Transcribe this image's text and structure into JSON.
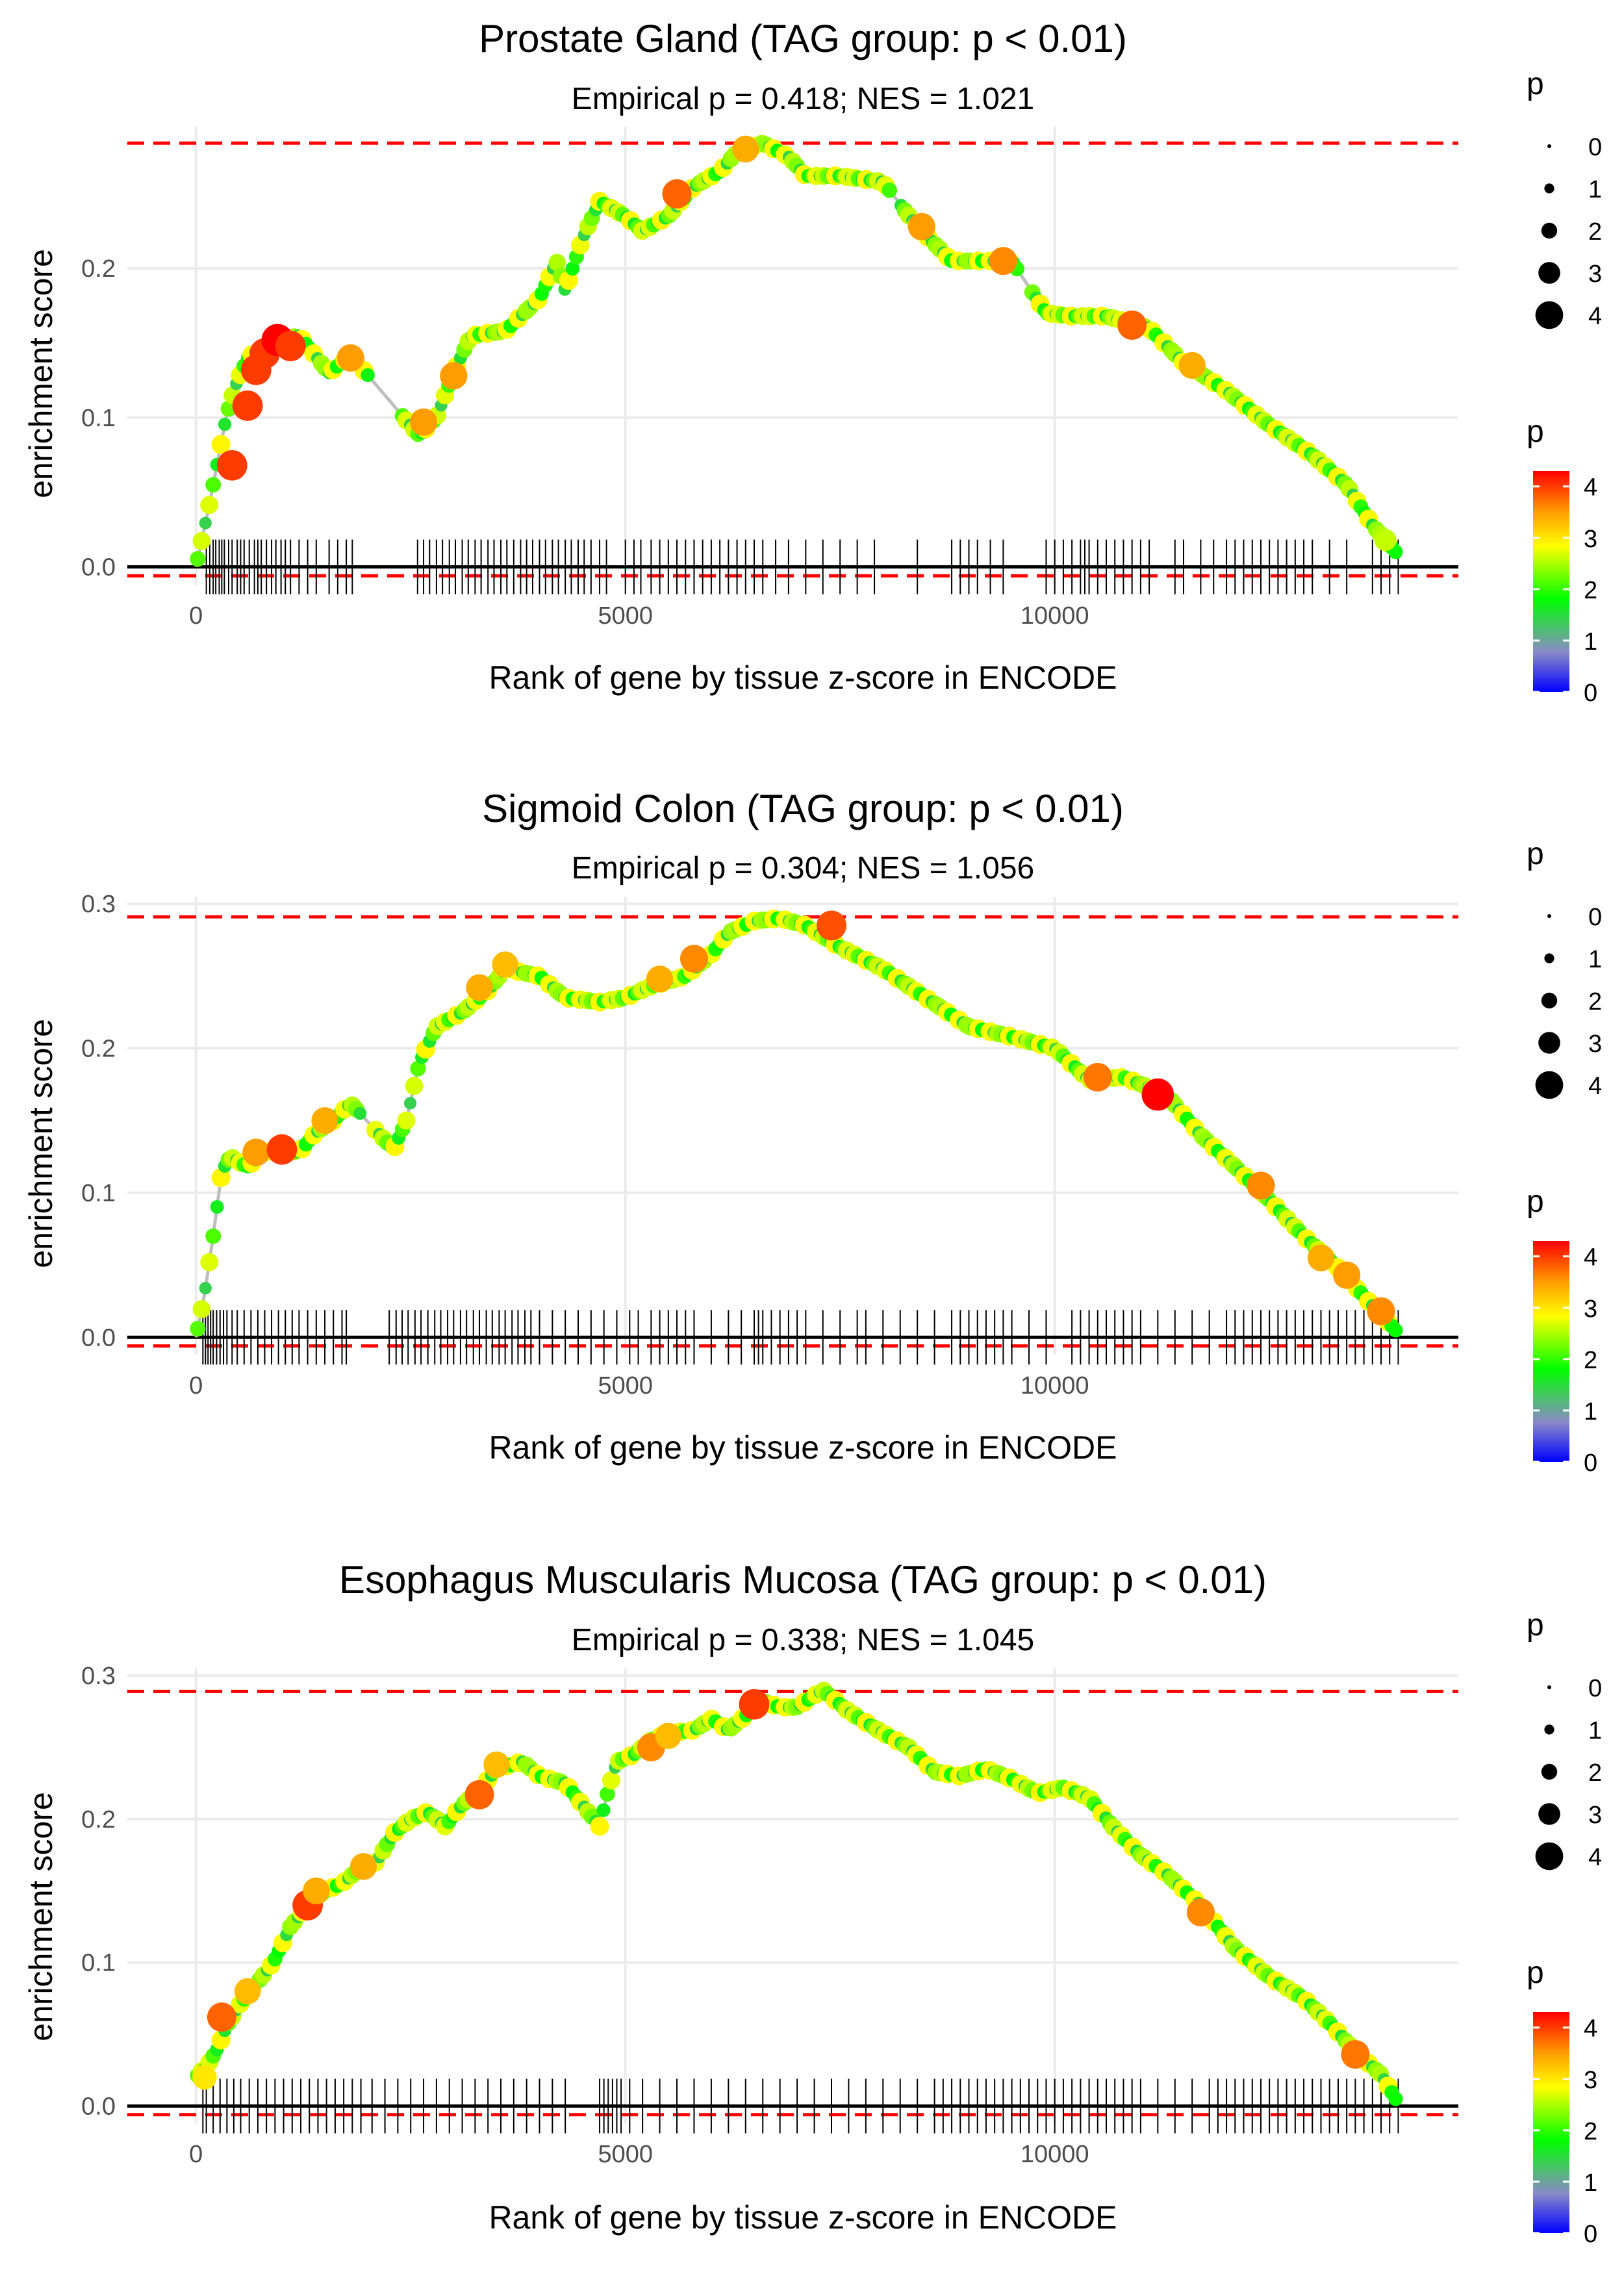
{
  "figure_title": "",
  "colors": {
    "threshold_line": "#ff0000",
    "running_line": "#bebebe",
    "axis_line": "#000000",
    "grid": "#ebebeb",
    "gradient": [
      "#0000ff",
      "#8a8ac8",
      "#00ff00",
      "#ffff00",
      "#ff9900",
      "#ff0000"
    ]
  },
  "chart_data": [
    {
      "type": "line",
      "title": "Prostate Gland (TAG group: p < 0.01)",
      "subtitle": "Empirical p = 0.418; NES = 1.021",
      "xlabel": "Rank of gene by tissue z-score in ENCODE",
      "ylabel": "enrichment score",
      "xlim": [
        -800,
        14700
      ],
      "ylim": [
        -0.012,
        0.295
      ],
      "xticks": [
        0,
        5000,
        10000
      ],
      "xtick_labels": [
        "0",
        "5000",
        "10000"
      ],
      "yticks": [
        0.0,
        0.1,
        0.2
      ],
      "ytick_labels": [
        "0.0",
        "0.1",
        "0.2"
      ],
      "threshold_max": 0.284,
      "threshold_min": -0.006,
      "curve": [
        [
          0,
          0
        ],
        [
          150,
          0.04
        ],
        [
          250,
          0.07
        ],
        [
          350,
          0.1
        ],
        [
          450,
          0.12
        ],
        [
          600,
          0.14
        ],
        [
          800,
          0.148
        ],
        [
          1000,
          0.152
        ],
        [
          1200,
          0.155
        ],
        [
          1550,
          0.13
        ],
        [
          1800,
          0.142
        ],
        [
          2600,
          0.088
        ],
        [
          2800,
          0.1
        ],
        [
          3000,
          0.13
        ],
        [
          3200,
          0.155
        ],
        [
          3600,
          0.158
        ],
        [
          4000,
          0.18
        ],
        [
          4200,
          0.205
        ],
        [
          4300,
          0.185
        ],
        [
          4500,
          0.22
        ],
        [
          4700,
          0.245
        ],
        [
          5000,
          0.235
        ],
        [
          5200,
          0.225
        ],
        [
          5500,
          0.235
        ],
        [
          5800,
          0.255
        ],
        [
          6100,
          0.265
        ],
        [
          6300,
          0.278
        ],
        [
          6600,
          0.284
        ],
        [
          6900,
          0.275
        ],
        [
          7100,
          0.262
        ],
        [
          7500,
          0.262
        ],
        [
          8000,
          0.258
        ],
        [
          8400,
          0.228
        ],
        [
          8800,
          0.205
        ],
        [
          9200,
          0.205
        ],
        [
          9500,
          0.205
        ],
        [
          9900,
          0.17
        ],
        [
          10200,
          0.168
        ],
        [
          10600,
          0.168
        ],
        [
          11100,
          0.16
        ],
        [
          11500,
          0.137
        ],
        [
          12000,
          0.118
        ],
        [
          12500,
          0.095
        ],
        [
          13000,
          0.075
        ],
        [
          13400,
          0.055
        ],
        [
          13700,
          0.028
        ],
        [
          14000,
          0.008
        ]
      ],
      "big_dots": [
        [
          420,
          0.068,
          4
        ],
        [
          600,
          0.108,
          4
        ],
        [
          700,
          0.132,
          4
        ],
        [
          800,
          0.143,
          4
        ],
        [
          950,
          0.152,
          4.3
        ],
        [
          1100,
          0.148,
          4
        ],
        [
          1800,
          0.14,
          3.5
        ],
        [
          2650,
          0.097,
          3.5
        ],
        [
          3000,
          0.128,
          3.5
        ],
        [
          5600,
          0.25,
          3.8
        ],
        [
          6400,
          0.28,
          3.4
        ],
        [
          8450,
          0.228,
          3.5
        ],
        [
          9400,
          0.205,
          3.6
        ],
        [
          10900,
          0.162,
          3.8
        ],
        [
          11600,
          0.135,
          3.4
        ],
        [
          13850,
          0.018,
          2.6
        ]
      ],
      "ticks": [
        120,
        160,
        200,
        230,
        270,
        300,
        330,
        380,
        420,
        480,
        520,
        560,
        620,
        680,
        720,
        760,
        820,
        880,
        930,
        990,
        1040,
        1100,
        1200,
        1300,
        1400,
        1550,
        1650,
        1750,
        1820,
        2580,
        2650,
        2720,
        2800,
        2870,
        2950,
        3020,
        3100,
        3170,
        3250,
        3320,
        3400,
        3470,
        3550,
        3620,
        3700,
        3780,
        3850,
        3920,
        4000,
        4070,
        4150,
        4220,
        4300,
        4370,
        4450,
        4520,
        4600,
        4700,
        4780,
        5000,
        5100,
        5180,
        5300,
        5400,
        5500,
        5600,
        5700,
        5800,
        5900,
        6000,
        6100,
        6200,
        6300,
        6400,
        6500,
        6600,
        6750,
        6900,
        7100,
        7300,
        7500,
        7700,
        7900,
        8400,
        8800,
        8900,
        9000,
        9100,
        9250,
        9400,
        9900,
        10000,
        10100,
        10200,
        10300,
        10350,
        10400,
        10500,
        10600,
        10700,
        10800,
        10900,
        11000,
        11100,
        11400,
        11500,
        11700,
        11850,
        12000,
        12100,
        12200,
        12300,
        12400,
        12500,
        12600,
        12700,
        12800,
        12900,
        13000,
        13200,
        13400,
        13700,
        13800,
        13900,
        14000
      ]
    },
    {
      "type": "line",
      "title": "Sigmoid Colon (TAG group: p < 0.01)",
      "subtitle": "Empirical p = 0.304; NES = 1.056",
      "xlabel": "Rank of gene by tissue z-score in ENCODE",
      "ylabel": "enrichment score",
      "xlim": [
        -800,
        14700
      ],
      "ylim": [
        -0.012,
        0.305
      ],
      "xticks": [
        0,
        5000,
        10000
      ],
      "xtick_labels": [
        "0",
        "5000",
        "10000"
      ],
      "yticks": [
        0.0,
        0.1,
        0.2,
        0.3
      ],
      "ytick_labels": [
        "0.0",
        "0.1",
        "0.2",
        "0.3"
      ],
      "threshold_max": 0.291,
      "threshold_min": -0.006,
      "curve": [
        [
          0,
          0
        ],
        [
          100,
          0.03
        ],
        [
          200,
          0.07
        ],
        [
          300,
          0.115
        ],
        [
          400,
          0.125
        ],
        [
          600,
          0.118
        ],
        [
          800,
          0.128
        ],
        [
          1000,
          0.13
        ],
        [
          1200,
          0.128
        ],
        [
          1400,
          0.142
        ],
        [
          1600,
          0.15
        ],
        [
          1800,
          0.162
        ],
        [
          2300,
          0.13
        ],
        [
          2450,
          0.15
        ],
        [
          2600,
          0.19
        ],
        [
          2800,
          0.215
        ],
        [
          3100,
          0.225
        ],
        [
          3400,
          0.24
        ],
        [
          3600,
          0.255
        ],
        [
          4000,
          0.25
        ],
        [
          4300,
          0.235
        ],
        [
          4700,
          0.232
        ],
        [
          5000,
          0.235
        ],
        [
          5300,
          0.243
        ],
        [
          5700,
          0.25
        ],
        [
          6000,
          0.265
        ],
        [
          6200,
          0.28
        ],
        [
          6500,
          0.288
        ],
        [
          6800,
          0.29
        ],
        [
          7100,
          0.285
        ],
        [
          7500,
          0.27
        ],
        [
          8000,
          0.255
        ],
        [
          8500,
          0.235
        ],
        [
          9000,
          0.215
        ],
        [
          9500,
          0.208
        ],
        [
          10000,
          0.2
        ],
        [
          10400,
          0.178
        ],
        [
          10800,
          0.18
        ],
        [
          11300,
          0.168
        ],
        [
          11700,
          0.14
        ],
        [
          12100,
          0.118
        ],
        [
          12500,
          0.095
        ],
        [
          12900,
          0.07
        ],
        [
          13300,
          0.048
        ],
        [
          13700,
          0.022
        ],
        [
          14000,
          0.003
        ]
      ],
      "big_dots": [
        [
          700,
          0.128,
          3.5
        ],
        [
          1000,
          0.13,
          4
        ],
        [
          1500,
          0.15,
          3.4
        ],
        [
          3300,
          0.242,
          3.4
        ],
        [
          3600,
          0.258,
          3.3
        ],
        [
          5400,
          0.248,
          3.4
        ],
        [
          5800,
          0.262,
          3.6
        ],
        [
          7400,
          0.285,
          3.9
        ],
        [
          10500,
          0.18,
          3.7
        ],
        [
          11200,
          0.168,
          4.3
        ],
        [
          12400,
          0.105,
          3.6
        ],
        [
          13100,
          0.055,
          3.4
        ],
        [
          13400,
          0.043,
          3.5
        ],
        [
          13800,
          0.018,
          3.6
        ]
      ],
      "ticks": [
        80,
        110,
        140,
        170,
        200,
        240,
        280,
        320,
        360,
        420,
        480,
        560,
        640,
        720,
        800,
        880,
        960,
        1040,
        1120,
        1200,
        1300,
        1400,
        1500,
        1600,
        1700,
        1750,
        2250,
        2330,
        2400,
        2470,
        2550,
        2620,
        2700,
        2780,
        2850,
        2930,
        3000,
        3080,
        3150,
        3230,
        3300,
        3380,
        3450,
        3530,
        3600,
        3680,
        3750,
        3830,
        3900,
        4000,
        4150,
        4300,
        4450,
        4600,
        4750,
        4900,
        5050,
        5150,
        5300,
        5400,
        5500,
        5600,
        5700,
        5800,
        6000,
        6200,
        6350,
        6500,
        6550,
        6600,
        6700,
        6800,
        6900,
        7000,
        7100,
        7300,
        7500,
        7700,
        7800,
        8000,
        8200,
        8400,
        8600,
        8800,
        8900,
        9000,
        9100,
        9200,
        9300,
        9400,
        9500,
        9700,
        9900,
        10200,
        10300,
        10400,
        10500,
        10600,
        10700,
        10800,
        10900,
        11000,
        11200,
        11400,
        11600,
        11800,
        12000,
        12100,
        12200,
        12300,
        12400,
        12500,
        12600,
        12700,
        12800,
        12900,
        13000,
        13100,
        13200,
        13300,
        13400,
        13500,
        13600,
        13700,
        13800,
        13900,
        14000
      ]
    },
    {
      "type": "line",
      "title": "Esophagus Muscularis Mucosa (TAG group: p < 0.01)",
      "subtitle": "Empirical p = 0.338; NES = 1.045",
      "xlabel": "Rank of gene by tissue z-score in ENCODE",
      "ylabel": "enrichment score",
      "xlim": [
        -800,
        14700
      ],
      "ylim": [
        -0.012,
        0.305
      ],
      "xticks": [
        0,
        5000,
        10000
      ],
      "xtick_labels": [
        "0",
        "5000",
        "10000"
      ],
      "yticks": [
        0.0,
        0.1,
        0.2,
        0.3
      ],
      "ytick_labels": [
        "0.0",
        "0.1",
        "0.2",
        "0.3"
      ],
      "threshold_max": 0.289,
      "threshold_min": -0.006,
      "curve": [
        [
          0,
          0.02
        ],
        [
          150,
          0.03
        ],
        [
          250,
          0.04
        ],
        [
          350,
          0.055
        ],
        [
          500,
          0.07
        ],
        [
          700,
          0.085
        ],
        [
          900,
          0.1
        ],
        [
          1100,
          0.125
        ],
        [
          1300,
          0.14
        ],
        [
          1500,
          0.15
        ],
        [
          1700,
          0.155
        ],
        [
          1900,
          0.165
        ],
        [
          2100,
          0.17
        ],
        [
          2300,
          0.19
        ],
        [
          2500,
          0.2
        ],
        [
          2700,
          0.205
        ],
        [
          2900,
          0.195
        ],
        [
          3100,
          0.21
        ],
        [
          3300,
          0.22
        ],
        [
          3500,
          0.235
        ],
        [
          3800,
          0.24
        ],
        [
          4000,
          0.23
        ],
        [
          4300,
          0.225
        ],
        [
          4700,
          0.195
        ],
        [
          4800,
          0.22
        ],
        [
          4900,
          0.24
        ],
        [
          5100,
          0.245
        ],
        [
          5300,
          0.255
        ],
        [
          5500,
          0.26
        ],
        [
          5800,
          0.262
        ],
        [
          6000,
          0.27
        ],
        [
          6200,
          0.262
        ],
        [
          6400,
          0.272
        ],
        [
          6600,
          0.282
        ],
        [
          6800,
          0.278
        ],
        [
          7000,
          0.278
        ],
        [
          7300,
          0.29
        ],
        [
          7600,
          0.275
        ],
        [
          8000,
          0.26
        ],
        [
          8300,
          0.25
        ],
        [
          8600,
          0.233
        ],
        [
          8900,
          0.23
        ],
        [
          9200,
          0.235
        ],
        [
          9500,
          0.228
        ],
        [
          9800,
          0.218
        ],
        [
          10100,
          0.222
        ],
        [
          10400,
          0.215
        ],
        [
          10700,
          0.193
        ],
        [
          11000,
          0.175
        ],
        [
          11300,
          0.162
        ],
        [
          11700,
          0.14
        ],
        [
          12100,
          0.11
        ],
        [
          12500,
          0.09
        ],
        [
          12900,
          0.075
        ],
        [
          13200,
          0.058
        ],
        [
          13500,
          0.038
        ],
        [
          13800,
          0.022
        ],
        [
          14000,
          0.002
        ]
      ],
      "big_dots": [
        [
          100,
          0.02,
          3
        ],
        [
          300,
          0.062,
          3.8
        ],
        [
          600,
          0.08,
          3.3
        ],
        [
          1300,
          0.14,
          4
        ],
        [
          1400,
          0.15,
          3.4
        ],
        [
          1950,
          0.167,
          3.4
        ],
        [
          3300,
          0.217,
          3.8
        ],
        [
          3500,
          0.238,
          3.3
        ],
        [
          5300,
          0.25,
          3.6
        ],
        [
          5500,
          0.258,
          3.3
        ],
        [
          6500,
          0.28,
          4
        ],
        [
          11700,
          0.135,
          3.6
        ],
        [
          13500,
          0.036,
          3.7
        ]
      ],
      "ticks": [
        80,
        120,
        200,
        280,
        360,
        440,
        520,
        620,
        720,
        820,
        920,
        1020,
        1120,
        1220,
        1320,
        1420,
        1520,
        1620,
        1720,
        1820,
        1920,
        2050,
        2200,
        2350,
        2500,
        2650,
        2800,
        2950,
        3100,
        3250,
        3400,
        3550,
        3700,
        3850,
        4000,
        4150,
        4300,
        4700,
        4750,
        4800,
        4850,
        4900,
        4950,
        5050,
        5200,
        5400,
        5600,
        5800,
        6000,
        6200,
        6400,
        6600,
        6800,
        7000,
        7200,
        7400,
        7600,
        7800,
        8000,
        8200,
        8400,
        8600,
        8700,
        8800,
        8900,
        9000,
        9100,
        9200,
        9300,
        9400,
        9500,
        9600,
        9700,
        9800,
        9900,
        10000,
        10100,
        10200,
        10300,
        10400,
        10500,
        10600,
        10700,
        10800,
        10900,
        11000,
        11200,
        11400,
        11600,
        11800,
        11900,
        12000,
        12100,
        12200,
        12300,
        12400,
        12500,
        12600,
        12700,
        12800,
        12900,
        13000,
        13100,
        13200,
        13300,
        13400,
        13500,
        13600,
        13700,
        13800,
        13900,
        14000
      ]
    }
  ],
  "legends": [
    {
      "size_title": "p",
      "size_labels": [
        "0",
        "1",
        "2",
        "3",
        "4"
      ],
      "color_title": "p",
      "color_labels": [
        "4",
        "3",
        "2",
        "1",
        "0"
      ]
    },
    {
      "size_title": "p",
      "size_labels": [
        "0",
        "1",
        "2",
        "3",
        "4"
      ],
      "color_title": "p",
      "color_labels": [
        "4",
        "3",
        "2",
        "1",
        "0"
      ]
    },
    {
      "size_title": "p",
      "size_labels": [
        "0",
        "1",
        "2",
        "3",
        "4"
      ],
      "color_title": "p",
      "color_labels": [
        "4",
        "3",
        "2",
        "1",
        "0"
      ]
    }
  ]
}
